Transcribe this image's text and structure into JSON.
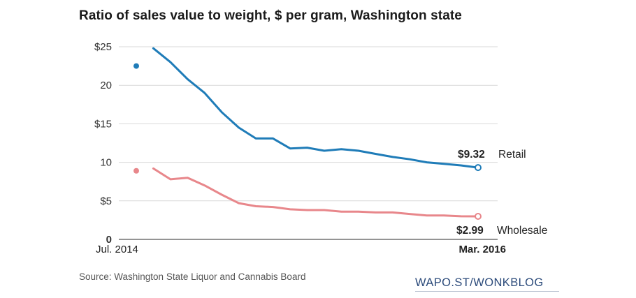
{
  "chart_data": {
    "type": "line",
    "title": "Ratio of sales value to weight, $ per gram, Washington state",
    "xlabel": "",
    "ylabel": "",
    "ylim": [
      0,
      25
    ],
    "yticks": [
      {
        "value": 25,
        "label": "$25"
      },
      {
        "value": 20,
        "label": "20"
      },
      {
        "value": 15,
        "label": "$15"
      },
      {
        "value": 10,
        "label": "10"
      },
      {
        "value": 5,
        "label": "$5"
      },
      {
        "value": 0,
        "label": "0"
      }
    ],
    "xticks": [
      {
        "index": 0,
        "label": "Jul. 2014"
      },
      {
        "index": 20,
        "label": "Mar. 2016"
      }
    ],
    "grid": true,
    "series": [
      {
        "name": "Retail",
        "color": "#1f7cb8",
        "end_label": "$9.32",
        "values": [
          22.5,
          24.8,
          23.0,
          20.8,
          19.0,
          16.5,
          14.5,
          13.1,
          13.1,
          11.8,
          11.9,
          11.5,
          11.7,
          11.5,
          11.1,
          10.7,
          10.4,
          10.0,
          9.8,
          9.6,
          9.32
        ]
      },
      {
        "name": "Wholesale",
        "color": "#e8878b",
        "end_label": "$2.99",
        "values": [
          8.9,
          9.2,
          7.8,
          8.0,
          7.0,
          5.8,
          4.7,
          4.3,
          4.2,
          3.9,
          3.8,
          3.8,
          3.6,
          3.6,
          3.5,
          3.5,
          3.3,
          3.1,
          3.1,
          3.0,
          2.99
        ]
      }
    ],
    "source": "Source: Washington State Liquor and Cannabis Board",
    "branding": "WAPO.ST/WONKBLOG"
  }
}
